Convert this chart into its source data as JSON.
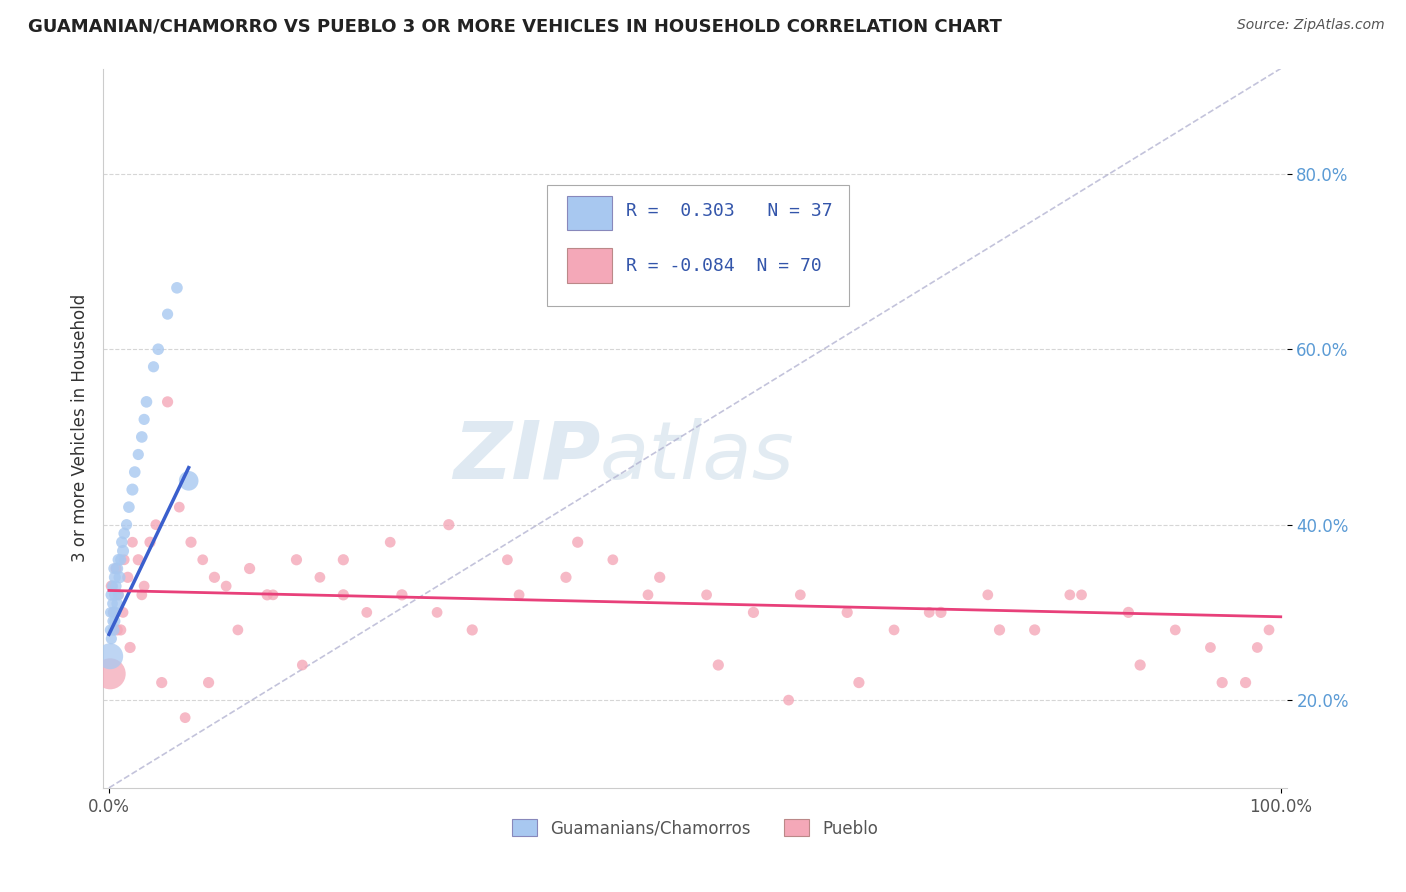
{
  "title": "GUAMANIAN/CHAMORRO VS PUEBLO 3 OR MORE VEHICLES IN HOUSEHOLD CORRELATION CHART",
  "source": "Source: ZipAtlas.com",
  "ylabel": "3 or more Vehicles in Household",
  "R1": 0.303,
  "N1": 37,
  "R2": -0.084,
  "N2": 70,
  "color1": "#a8c8f0",
  "color2": "#f4a8b8",
  "line_color1": "#3a5fcd",
  "line_color2": "#e8407a",
  "legend_label1": "Guamanians/Chamorros",
  "legend_label2": "Pueblo",
  "guam_x": [
    0.001,
    0.001,
    0.002,
    0.002,
    0.003,
    0.003,
    0.003,
    0.004,
    0.004,
    0.004,
    0.005,
    0.005,
    0.005,
    0.006,
    0.006,
    0.007,
    0.007,
    0.008,
    0.008,
    0.009,
    0.01,
    0.011,
    0.012,
    0.013,
    0.015,
    0.017,
    0.02,
    0.022,
    0.025,
    0.028,
    0.03,
    0.032,
    0.038,
    0.042,
    0.05,
    0.058,
    0.068
  ],
  "guam_y": [
    0.28,
    0.3,
    0.27,
    0.32,
    0.29,
    0.31,
    0.33,
    0.28,
    0.3,
    0.35,
    0.29,
    0.32,
    0.34,
    0.3,
    0.33,
    0.31,
    0.35,
    0.32,
    0.36,
    0.34,
    0.36,
    0.38,
    0.37,
    0.39,
    0.4,
    0.42,
    0.44,
    0.46,
    0.48,
    0.5,
    0.52,
    0.54,
    0.58,
    0.6,
    0.64,
    0.67,
    0.45
  ],
  "guam_s": [
    60,
    55,
    65,
    70,
    55,
    60,
    65,
    70,
    75,
    60,
    65,
    70,
    75,
    60,
    65,
    70,
    75,
    65,
    70,
    75,
    65,
    70,
    75,
    70,
    65,
    70,
    75,
    70,
    65,
    70,
    65,
    70,
    65,
    70,
    65,
    70,
    200
  ],
  "guam_large_x": [
    0.001
  ],
  "guam_large_y": [
    0.25
  ],
  "guam_large_s": [
    350
  ],
  "pueblo_x": [
    0.002,
    0.004,
    0.006,
    0.008,
    0.01,
    0.013,
    0.016,
    0.02,
    0.025,
    0.03,
    0.035,
    0.04,
    0.05,
    0.06,
    0.07,
    0.08,
    0.09,
    0.1,
    0.12,
    0.14,
    0.16,
    0.18,
    0.2,
    0.22,
    0.25,
    0.28,
    0.31,
    0.35,
    0.39,
    0.43,
    0.47,
    0.51,
    0.55,
    0.59,
    0.63,
    0.67,
    0.71,
    0.75,
    0.79,
    0.83,
    0.87,
    0.91,
    0.95,
    0.98,
    0.007,
    0.012,
    0.018,
    0.028,
    0.045,
    0.065,
    0.085,
    0.11,
    0.135,
    0.165,
    0.2,
    0.24,
    0.29,
    0.34,
    0.4,
    0.46,
    0.52,
    0.58,
    0.64,
    0.7,
    0.76,
    0.82,
    0.88,
    0.94,
    0.97,
    0.99
  ],
  "pueblo_y": [
    0.33,
    0.3,
    0.35,
    0.32,
    0.28,
    0.36,
    0.34,
    0.38,
    0.36,
    0.33,
    0.38,
    0.4,
    0.54,
    0.42,
    0.38,
    0.36,
    0.34,
    0.33,
    0.35,
    0.32,
    0.36,
    0.34,
    0.32,
    0.3,
    0.32,
    0.3,
    0.28,
    0.32,
    0.34,
    0.36,
    0.34,
    0.32,
    0.3,
    0.32,
    0.3,
    0.28,
    0.3,
    0.32,
    0.28,
    0.32,
    0.3,
    0.28,
    0.22,
    0.26,
    0.28,
    0.3,
    0.26,
    0.32,
    0.22,
    0.18,
    0.22,
    0.28,
    0.32,
    0.24,
    0.36,
    0.38,
    0.4,
    0.36,
    0.38,
    0.32,
    0.24,
    0.2,
    0.22,
    0.3,
    0.28,
    0.32,
    0.24,
    0.26,
    0.22,
    0.28
  ],
  "pueblo_s": [
    65,
    60,
    65,
    60,
    65,
    60,
    65,
    60,
    65,
    60,
    65,
    60,
    65,
    60,
    65,
    60,
    65,
    60,
    65,
    60,
    65,
    60,
    65,
    60,
    65,
    60,
    65,
    60,
    65,
    60,
    65,
    60,
    65,
    60,
    65,
    60,
    65,
    60,
    65,
    60,
    65,
    60,
    65,
    60,
    65,
    60,
    65,
    60,
    65,
    60,
    65,
    60,
    65,
    60,
    65,
    60,
    65,
    60,
    65,
    60,
    65,
    60,
    65,
    60,
    65,
    60,
    65,
    60,
    65,
    60
  ],
  "pueblo_large_x": [
    0.001
  ],
  "pueblo_large_y": [
    0.23
  ],
  "pueblo_large_s": [
    500
  ],
  "xlim": [
    -0.005,
    1.005
  ],
  "ylim": [
    0.1,
    0.92
  ],
  "y_ticks": [
    0.2,
    0.4,
    0.6,
    0.8
  ],
  "y_tick_labels": [
    "20.0%",
    "40.0%",
    "60.0%",
    "80.0%"
  ],
  "watermark_zip": "ZIP",
  "watermark_atlas": "atlas",
  "ref_line_x": [
    0.0,
    1.0
  ],
  "ref_line_y": [
    0.1,
    0.92
  ]
}
